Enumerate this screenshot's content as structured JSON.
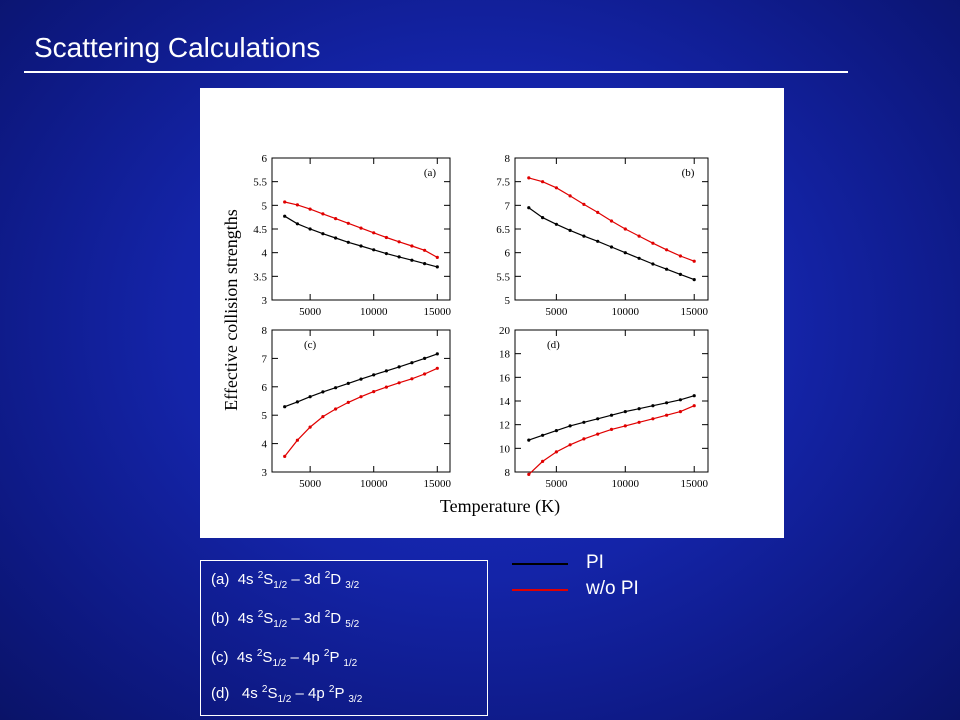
{
  "slide": {
    "title": "Scattering Calculations"
  },
  "figure": {
    "ylabel": "Effective collision strengths",
    "xlabel": "Temperature (K)"
  },
  "legend": {
    "items": [
      {
        "label": "PI",
        "color": "#000000"
      },
      {
        "label": "w/o PI",
        "color": "#e00000"
      }
    ]
  },
  "key": {
    "rows": [
      {
        "tag": "(a)",
        "pre": "4s ",
        "s1": "2",
        "t1": "S",
        "b1": "1/2",
        "mid": " – 3d ",
        "s2": "2",
        "t2": "D",
        "b2": "3/2"
      },
      {
        "tag": "(b)",
        "pre": "4s ",
        "s1": "2",
        "t1": "S",
        "b1": "1/2",
        "mid": " – 3d ",
        "s2": "2",
        "t2": "D",
        "b2": "5/2"
      },
      {
        "tag": "(c)",
        "pre": "4s ",
        "s1": "2",
        "t1": "S",
        "b1": "1/2",
        "mid": " – 4p ",
        "s2": "2",
        "t2": "P",
        "b2": "1/2"
      },
      {
        "tag": "(d)",
        "pre": " 4s ",
        "s1": "2",
        "t1": "S",
        "b1": "1/2",
        "mid": " – 4p ",
        "s2": "2",
        "t2": "P",
        "b2": "3/2"
      }
    ]
  },
  "chart_data": [
    {
      "type": "line",
      "panel": "(a)",
      "x": [
        3000,
        4000,
        5000,
        6000,
        7000,
        8000,
        9000,
        10000,
        11000,
        12000,
        13000,
        14000,
        15000
      ],
      "xticks": [
        "5000",
        "10000",
        "15000"
      ],
      "xlim": [
        2000,
        16000
      ],
      "yticks": [
        "3",
        "3.5",
        "4",
        "4.5",
        "5",
        "5.5",
        "6"
      ],
      "ylim": [
        3,
        6
      ],
      "series": [
        {
          "name": "PI",
          "color": "#000000",
          "values": [
            4.77,
            4.61,
            4.5,
            4.4,
            4.31,
            4.22,
            4.14,
            4.06,
            3.98,
            3.91,
            3.84,
            3.77,
            3.7
          ]
        },
        {
          "name": "w/o PI",
          "color": "#e00000",
          "values": [
            5.07,
            5.01,
            4.92,
            4.82,
            4.72,
            4.62,
            4.52,
            4.42,
            4.32,
            4.23,
            4.14,
            4.05,
            3.9
          ]
        }
      ]
    },
    {
      "type": "line",
      "panel": "(b)",
      "x": [
        3000,
        4000,
        5000,
        6000,
        7000,
        8000,
        9000,
        10000,
        11000,
        12000,
        13000,
        14000,
        15000
      ],
      "xticks": [
        "5000",
        "10000",
        "15000"
      ],
      "xlim": [
        2000,
        16000
      ],
      "yticks": [
        "5",
        "5.5",
        "6",
        "6.5",
        "7",
        "7.5",
        "8"
      ],
      "ylim": [
        5,
        8
      ],
      "series": [
        {
          "name": "PI",
          "color": "#000000",
          "values": [
            6.95,
            6.74,
            6.6,
            6.47,
            6.35,
            6.24,
            6.12,
            6.0,
            5.88,
            5.76,
            5.65,
            5.54,
            5.43
          ]
        },
        {
          "name": "w/o PI",
          "color": "#e00000",
          "values": [
            7.58,
            7.5,
            7.37,
            7.2,
            7.02,
            6.85,
            6.67,
            6.5,
            6.35,
            6.2,
            6.06,
            5.93,
            5.82
          ]
        }
      ]
    },
    {
      "type": "line",
      "panel": "(c)",
      "x": [
        3000,
        4000,
        5000,
        6000,
        7000,
        8000,
        9000,
        10000,
        11000,
        12000,
        13000,
        14000,
        15000
      ],
      "xticks": [
        "5000",
        "10000",
        "15000"
      ],
      "xlim": [
        2000,
        16000
      ],
      "yticks": [
        "3",
        "4",
        "5",
        "6",
        "7",
        "8"
      ],
      "ylim": [
        3,
        8
      ],
      "series": [
        {
          "name": "PI",
          "color": "#000000",
          "values": [
            5.3,
            5.47,
            5.65,
            5.82,
            5.97,
            6.12,
            6.27,
            6.42,
            6.56,
            6.7,
            6.85,
            7.0,
            7.16
          ]
        },
        {
          "name": "w/o PI",
          "color": "#e00000",
          "values": [
            3.55,
            4.12,
            4.58,
            4.95,
            5.22,
            5.45,
            5.65,
            5.83,
            5.99,
            6.14,
            6.28,
            6.45,
            6.65
          ]
        }
      ]
    },
    {
      "type": "line",
      "panel": "(d)",
      "x": [
        3000,
        4000,
        5000,
        6000,
        7000,
        8000,
        9000,
        10000,
        11000,
        12000,
        13000,
        14000,
        15000
      ],
      "xticks": [
        "5000",
        "10000",
        "15000"
      ],
      "xlim": [
        2000,
        16000
      ],
      "yticks": [
        "8",
        "10",
        "12",
        "14",
        "16",
        "18",
        "20"
      ],
      "ylim": [
        8,
        20
      ],
      "series": [
        {
          "name": "PI",
          "color": "#000000",
          "values": [
            10.7,
            11.1,
            11.5,
            11.9,
            12.2,
            12.5,
            12.8,
            13.1,
            13.35,
            13.6,
            13.85,
            14.1,
            14.45
          ]
        },
        {
          "name": "w/o PI",
          "color": "#e00000",
          "values": [
            7.8,
            8.9,
            9.7,
            10.3,
            10.8,
            11.2,
            11.6,
            11.9,
            12.2,
            12.5,
            12.8,
            13.1,
            13.6
          ]
        }
      ]
    }
  ]
}
